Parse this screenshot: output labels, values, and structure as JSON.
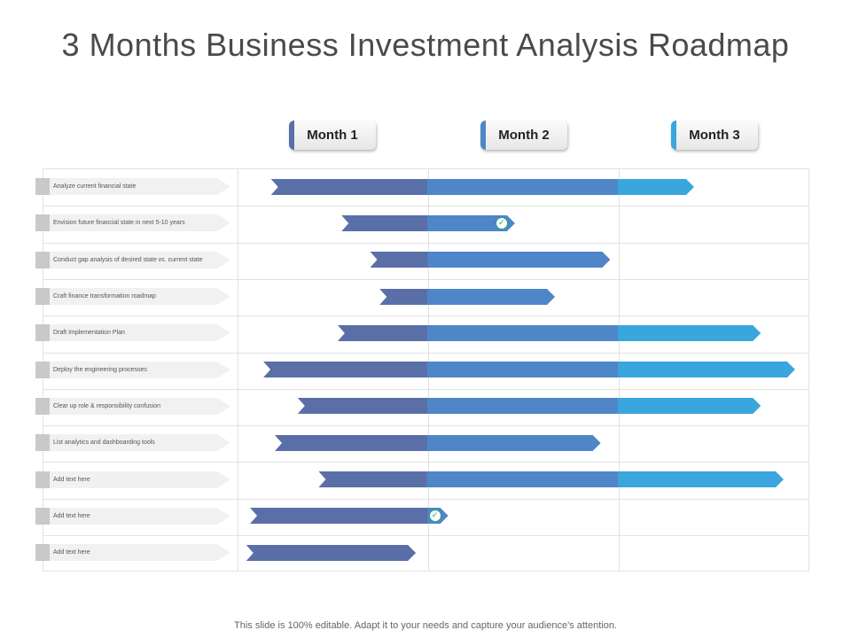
{
  "title": "3 Months Business Investment Analysis Roadmap",
  "months": [
    {
      "label": "Month 1",
      "accent": "#5a6fa8"
    },
    {
      "label": "Month 2",
      "accent": "#4e86c8"
    },
    {
      "label": "Month 3",
      "accent": "#3aa6dd"
    }
  ],
  "colors": {
    "month1": "#5a6fa8",
    "month2": "#4e86c8",
    "month3": "#3aa6dd",
    "check": "#2e9e7a"
  },
  "rows": [
    {
      "label": "Analyze current financial state",
      "start_month": 0.18,
      "end_month": 2.4,
      "milestone": false
    },
    {
      "label": "Envision future financial state in next 5-10 years",
      "start_month": 0.55,
      "end_month": 1.46,
      "milestone": true
    },
    {
      "label": "Conduct gap analysis of desired state vs. current state",
      "start_month": 0.7,
      "end_month": 1.96,
      "milestone": false
    },
    {
      "label": "Craft finance transformation roadmap",
      "start_month": 0.75,
      "end_month": 1.67,
      "milestone": false
    },
    {
      "label": "Draft Implementation Plan",
      "start_month": 0.53,
      "end_month": 2.75,
      "milestone": false
    },
    {
      "label": "Deploy the engineering processes",
      "start_month": 0.14,
      "end_month": 2.93,
      "milestone": false
    },
    {
      "label": "Clear up role & responsibility confusion",
      "start_month": 0.32,
      "end_month": 2.75,
      "milestone": false
    },
    {
      "label": "List analytics and dashboarding tools",
      "start_month": 0.2,
      "end_month": 1.91,
      "milestone": false
    },
    {
      "label": "Add text here",
      "start_month": 0.43,
      "end_month": 2.87,
      "milestone": false
    },
    {
      "label": "Add text here",
      "start_month": 0.07,
      "end_month": 1.11,
      "milestone": true
    },
    {
      "label": "Add text here",
      "start_month": 0.05,
      "end_month": 0.94,
      "milestone": false
    }
  ],
  "footer": "This slide is 100% editable. Adapt it to your needs and capture your audience's attention."
}
